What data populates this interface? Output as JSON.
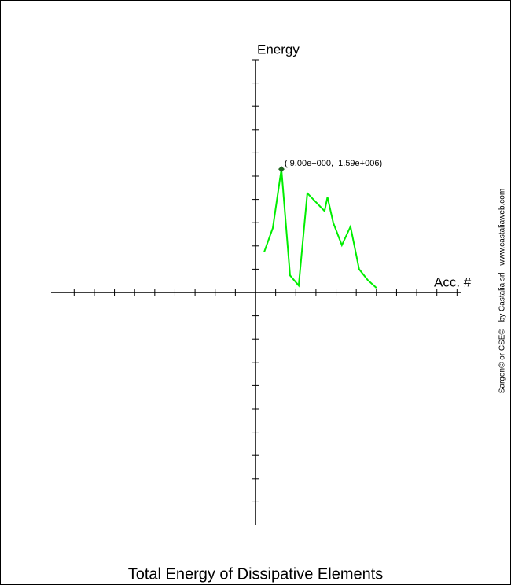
{
  "chart_data": {
    "type": "line",
    "title": "Total Energy of Dissipative Elements",
    "x_label": "Acc. #",
    "y_label": "Energy",
    "annotation": "( 9.00e+000,  1.59e+006)",
    "credit": "Sargon© or CSE© - by Castalia srl - www.castaliaweb.com",
    "x": [
      3,
      6,
      9,
      12,
      15,
      18,
      24,
      25,
      27,
      30,
      33,
      36,
      39,
      42
    ],
    "series": [
      {
        "color": "#00ee00",
        "values": [
          520000,
          830000,
          1590000,
          220000,
          90000,
          1280000,
          1050000,
          1230000,
          900000,
          610000,
          850000,
          300000,
          160000,
          60000
        ]
      }
    ],
    "xlim": [
      -71,
      71
    ],
    "ylim": [
      -3000000,
      3000000
    ],
    "xticks": [
      -63,
      -56,
      -49,
      -42,
      -35,
      -28,
      -21,
      -14,
      -7,
      7,
      14,
      21,
      28,
      35,
      42,
      49,
      56,
      63,
      70
    ],
    "yticks": [
      -2700000,
      -2400000,
      -2100000,
      -1800000,
      -1500000,
      -1200000,
      -900000,
      -600000,
      -300000,
      300000,
      600000,
      900000,
      1200000,
      1500000,
      1800000,
      2100000,
      2400000,
      2700000,
      3000000
    ]
  }
}
